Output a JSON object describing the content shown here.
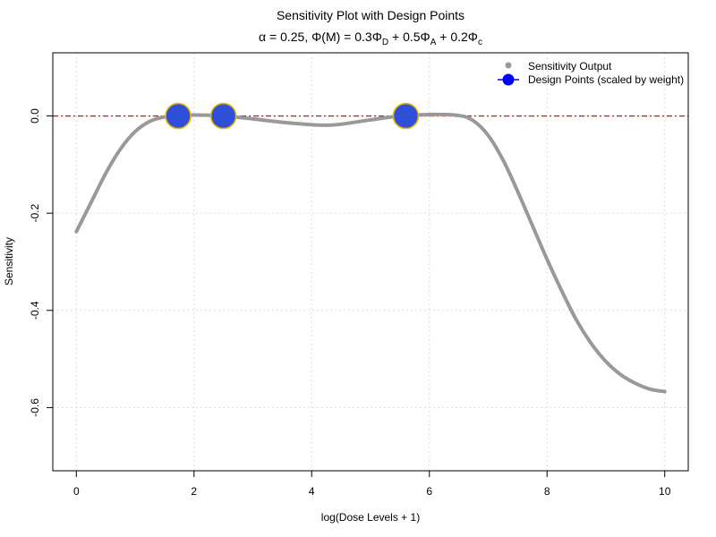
{
  "chart_data": {
    "type": "line",
    "title": "Sensitivity Plot with Design Points",
    "subtitle": {
      "alpha_part": "α = 0.25, ",
      "phi_open": "Φ(",
      "phi_m": "M",
      "phi_close": ")",
      "eq_part": " = 0.3Φ",
      "sub_d": "D",
      "plus_a": " + 0.5Φ",
      "sub_a": "A",
      "plus_c": " + 0.2Φ",
      "sub_c": "c"
    },
    "xlabel": "log(Dose Levels + 1)",
    "ylabel": "Sensitivity",
    "xlim": [
      -0.4,
      10.4
    ],
    "ylim": [
      -0.73,
      0.13
    ],
    "x_ticks": [
      0,
      2,
      4,
      6,
      8,
      10
    ],
    "y_ticks": [
      0.0,
      -0.2,
      -0.4,
      -0.6
    ],
    "x_tick_labels": [
      "0",
      "2",
      "4",
      "6",
      "8",
      "10"
    ],
    "y_tick_labels": [
      "0.0",
      "-0.2",
      "-0.4",
      "-0.6"
    ],
    "grid": true,
    "reference_line": {
      "y": 0,
      "color": "#ff0000",
      "style": "dash-dot"
    },
    "series": [
      {
        "name": "Sensitivity Output",
        "color": "#999999",
        "x": [
          0,
          0.25,
          0.5,
          0.75,
          1.0,
          1.25,
          1.5,
          1.75,
          2.0,
          2.5,
          3.0,
          3.5,
          4.0,
          4.25,
          4.5,
          5.0,
          5.5,
          6.0,
          6.5,
          6.75,
          7.0,
          7.25,
          7.5,
          7.75,
          8.0,
          8.25,
          8.5,
          8.75,
          9.0,
          9.25,
          9.5,
          9.75,
          10.0
        ],
        "y": [
          -0.238,
          -0.178,
          -0.118,
          -0.068,
          -0.032,
          -0.011,
          -0.002,
          0.0,
          0.002,
          0.0,
          -0.006,
          -0.013,
          -0.018,
          -0.019,
          -0.017,
          -0.008,
          0.0,
          0.003,
          0.001,
          -0.01,
          -0.04,
          -0.09,
          -0.155,
          -0.225,
          -0.295,
          -0.36,
          -0.42,
          -0.468,
          -0.505,
          -0.532,
          -0.55,
          -0.562,
          -0.567
        ]
      }
    ],
    "design_points": {
      "name": "Design Points (scaled by weight)",
      "fill": "#2f4fd8",
      "stroke": "#e6b800",
      "legend_color": "#0000ff",
      "x": [
        1.73,
        2.5,
        5.6
      ],
      "y": [
        0,
        0,
        0
      ]
    },
    "legend_position": "top-right"
  }
}
